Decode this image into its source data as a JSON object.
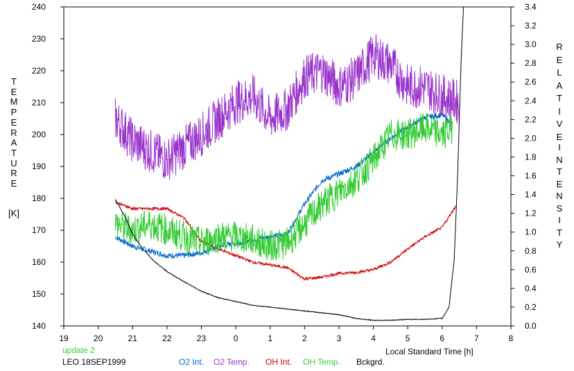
{
  "chart_data": {
    "type": "line",
    "xlabel": "Local Standard Time [h]",
    "ylabel_left_letters": [
      "T",
      "E",
      "M",
      "P",
      "E",
      "R",
      "A",
      "T",
      "U",
      "R",
      "E"
    ],
    "ylabel_left_unit": "[K]",
    "ylabel_right_top_letters": [
      "R",
      "E",
      "L",
      "A",
      "T",
      "I",
      "V",
      "E"
    ],
    "ylabel_right_bottom_letters": [
      "I",
      "N",
      "T",
      "E",
      "N",
      "S",
      "I",
      "T",
      "Y"
    ],
    "x_ticks": [
      "19",
      "20",
      "21",
      "22",
      "23",
      "0",
      "1",
      "2",
      "3",
      "4",
      "5",
      "6",
      "7",
      "8"
    ],
    "xlim": [
      19,
      32
    ],
    "y_left_ticks": [
      "140",
      "150",
      "160",
      "170",
      "180",
      "190",
      "200",
      "210",
      "220",
      "230",
      "240"
    ],
    "ylim_left": [
      140,
      240
    ],
    "y_right_ticks": [
      "0.0",
      "0.2",
      "0.4",
      "0.6",
      "0.8",
      "1.0",
      "1.2",
      "1.4",
      "1.6",
      "1.8",
      "2.0",
      "2.2",
      "2.4",
      "2.6",
      "2.8",
      "3.0",
      "3.2",
      "3.4"
    ],
    "ylim_right": [
      0,
      3.4
    ],
    "grid": false,
    "legend_position": "bottom",
    "update_text": "update 2",
    "site_text": "LEO 18SEP1999",
    "series": [
      {
        "name": "O2 Int.",
        "axis": "right",
        "color": "#0066cc",
        "noise": 0.03,
        "x": [
          20.5,
          21.0,
          21.5,
          22.0,
          22.5,
          23.0,
          23.5,
          24.0,
          24.5,
          25.0,
          25.5,
          26.0,
          26.5,
          27.0,
          27.5,
          28.0,
          28.5,
          29.0,
          29.5,
          30.0,
          30.3
        ],
        "y": [
          0.95,
          0.85,
          0.8,
          0.75,
          0.75,
          0.78,
          0.85,
          0.88,
          0.92,
          0.95,
          0.98,
          1.3,
          1.55,
          1.62,
          1.7,
          1.85,
          2.0,
          2.12,
          2.22,
          2.25,
          2.15
        ]
      },
      {
        "name": "O2 Temp.",
        "axis": "left",
        "color": "#9933cc",
        "noise": 7,
        "x": [
          20.5,
          21.0,
          21.5,
          22.0,
          22.5,
          23.0,
          23.5,
          24.0,
          24.5,
          25.0,
          25.5,
          26.0,
          26.5,
          27.0,
          27.5,
          28.0,
          28.5,
          29.0,
          29.5,
          30.0,
          30.5
        ],
        "y": [
          205,
          198,
          195,
          192,
          196,
          200,
          205,
          210,
          212,
          205,
          208,
          218,
          220,
          215,
          218,
          225,
          222,
          215,
          215,
          212,
          210
        ]
      },
      {
        "name": "OH Int.",
        "axis": "right",
        "color": "#cc0000",
        "noise": 0.015,
        "x": [
          20.5,
          21.0,
          21.5,
          22.0,
          22.5,
          23.0,
          23.5,
          24.0,
          24.5,
          25.0,
          25.5,
          26.0,
          26.5,
          27.0,
          27.5,
          28.0,
          28.5,
          29.0,
          29.5,
          30.0,
          30.4
        ],
        "y": [
          1.32,
          1.25,
          1.25,
          1.25,
          1.15,
          0.9,
          0.82,
          0.75,
          0.68,
          0.65,
          0.62,
          0.5,
          0.52,
          0.56,
          0.57,
          0.6,
          0.68,
          0.82,
          0.95,
          1.05,
          1.28
        ]
      },
      {
        "name": "OH Temp.",
        "axis": "left",
        "color": "#33cc33",
        "noise": 5,
        "x": [
          20.5,
          21.0,
          21.5,
          22.0,
          22.5,
          23.0,
          23.5,
          24.0,
          24.5,
          25.0,
          25.5,
          26.0,
          26.5,
          27.0,
          27.5,
          28.0,
          28.5,
          29.0,
          29.5,
          30.0,
          30.3
        ],
        "y": [
          172,
          170,
          172,
          170,
          168,
          166,
          168,
          168,
          167,
          165,
          166,
          172,
          178,
          182,
          186,
          192,
          200,
          200,
          202,
          200,
          202
        ]
      },
      {
        "name": "Bckgrd.",
        "axis": "right",
        "color": "#000000",
        "noise": 0.004,
        "x": [
          20.5,
          20.8,
          21.0,
          21.3,
          21.6,
          22.0,
          22.5,
          23.0,
          23.5,
          24.0,
          24.5,
          25.0,
          25.5,
          26.0,
          26.5,
          27.0,
          27.5,
          28.0,
          28.5,
          29.0,
          29.5,
          30.0,
          30.2,
          30.35,
          30.45,
          30.55,
          30.62
        ],
        "y": [
          1.35,
          1.15,
          0.98,
          0.82,
          0.7,
          0.58,
          0.47,
          0.37,
          0.3,
          0.26,
          0.22,
          0.2,
          0.18,
          0.16,
          0.14,
          0.12,
          0.08,
          0.06,
          0.06,
          0.07,
          0.07,
          0.08,
          0.2,
          0.7,
          1.6,
          2.8,
          3.4
        ]
      }
    ]
  }
}
